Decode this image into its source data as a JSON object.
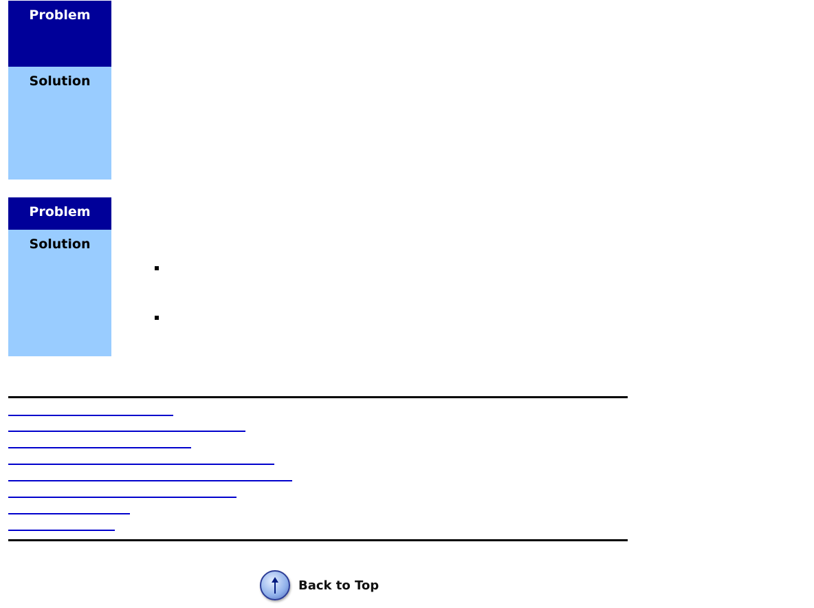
{
  "sections": [
    {
      "problem_label": "Problem",
      "solution_label": "Solution"
    },
    {
      "problem_label": "Problem",
      "solution_label": "Solution"
    }
  ],
  "colors": {
    "problem_bg": "#000099",
    "solution_bg": "#99ccff",
    "link": "#0000cc"
  },
  "back_to_top": {
    "label": "Back to Top",
    "icon": "up-arrow-circle-icon"
  }
}
